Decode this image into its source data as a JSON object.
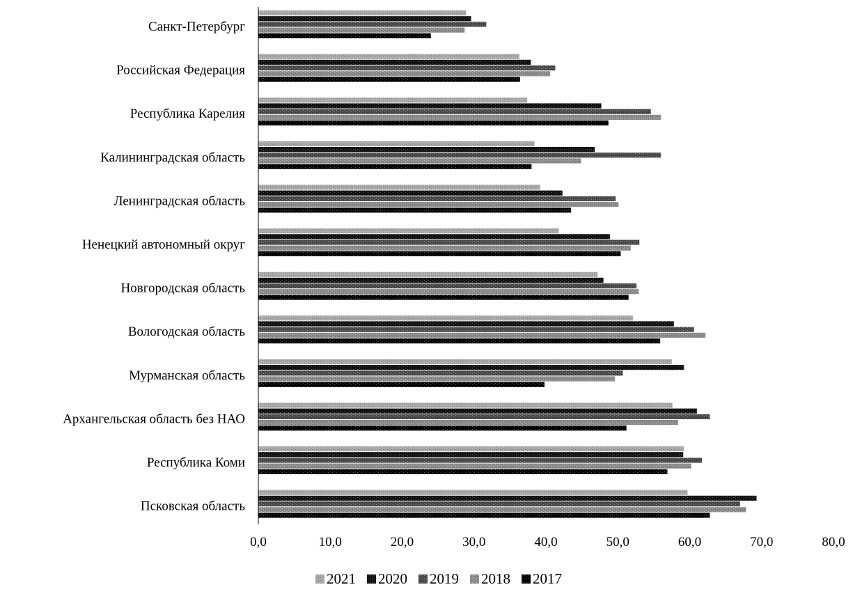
{
  "chart_data": {
    "type": "bar",
    "orientation": "horizontal",
    "categories": [
      "Санкт-Петербург",
      "Российская Федерация",
      "Республика Карелия",
      "Калининградская область",
      "Ленинградская область",
      "Ненецкий автономный округ",
      "Новгородская область",
      "Вологодская область",
      "Мурманская область",
      "Архангельская область  без НАО",
      "Республика Коми",
      "Псковская область"
    ],
    "series": [
      {
        "name": "2021",
        "color": "#a8a8a8",
        "values": [
          28.9,
          36.3,
          37.4,
          38.4,
          39.2,
          41.8,
          47.2,
          52.1,
          57.5,
          57.6,
          59.2,
          59.7
        ]
      },
      {
        "name": "2020",
        "color": "#111111",
        "values": [
          29.6,
          37.9,
          47.7,
          46.8,
          42.3,
          48.9,
          48.0,
          57.8,
          59.2,
          61.0,
          59.1,
          69.3
        ]
      },
      {
        "name": "2019",
        "color": "#4a4a4a",
        "values": [
          31.7,
          41.3,
          54.6,
          56.0,
          49.7,
          53.0,
          52.6,
          60.6,
          50.7,
          62.8,
          61.7,
          67.0
        ]
      },
      {
        "name": "2018",
        "color": "#8c8c8c",
        "values": [
          28.7,
          40.6,
          56.0,
          44.9,
          50.1,
          51.8,
          52.9,
          62.2,
          49.6,
          58.4,
          60.2,
          67.8
        ]
      },
      {
        "name": "2017",
        "color": "#000000",
        "values": [
          24.0,
          36.4,
          48.7,
          38.0,
          43.5,
          50.4,
          51.5,
          55.9,
          39.8,
          51.2,
          56.9,
          62.8
        ]
      }
    ],
    "xlim": [
      0,
      80
    ],
    "xticks": [
      "0,0",
      "10,0",
      "20,0",
      "30,0",
      "40,0",
      "50,0",
      "60,0",
      "70,0",
      "80,0"
    ],
    "grid": false,
    "legend_position": "bottom"
  }
}
